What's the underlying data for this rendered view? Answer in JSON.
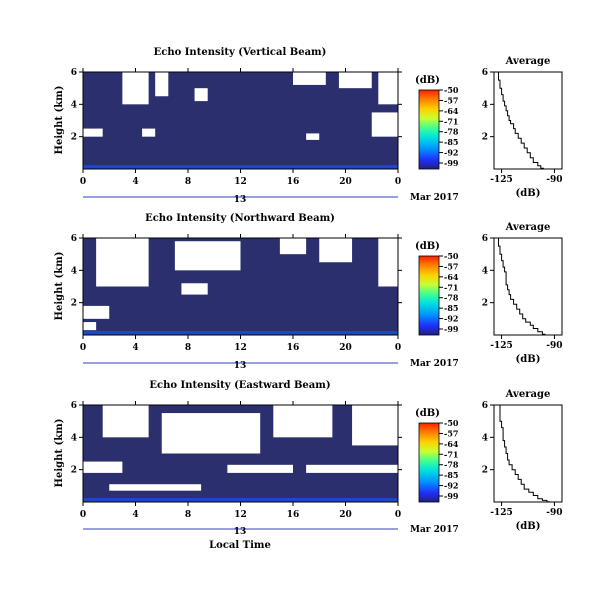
{
  "date_label": "Mar 2017",
  "day_label": "13",
  "xlabel": "Local Time",
  "colorbar": {
    "unit": "(dB)",
    "ticks": [
      "-50",
      "-57",
      "-64",
      "-71",
      "-78",
      "-85",
      "-92",
      "-99"
    ],
    "colors": [
      "#ff2000",
      "#ff8000",
      "#ffd000",
      "#c8ff30",
      "#40ff90",
      "#00e0e0",
      "#0090ff",
      "#2030ff",
      "#202080"
    ]
  },
  "colors": {
    "background_field": "#2b2f6e",
    "surface_band": "#1e46c8",
    "axis": "#000000"
  },
  "chart_data": [
    {
      "type": "heatmap",
      "title": "Echo Intensity (Vertical Beam)",
      "ylabel": "Height (km)",
      "x_ticks": [
        "0",
        "4",
        "8",
        "12",
        "16",
        "20",
        "0"
      ],
      "xlim": [
        0,
        24
      ],
      "y_ticks": [
        "6",
        "4",
        "2"
      ],
      "ylim": [
        0,
        6
      ],
      "white_patches": [
        {
          "x0": 3.0,
          "x1": 5.0,
          "y0": 4.0,
          "y1": 6.0
        },
        {
          "x0": 5.5,
          "x1": 6.5,
          "y0": 4.5,
          "y1": 6.0
        },
        {
          "x0": 8.5,
          "x1": 9.5,
          "y0": 4.2,
          "y1": 5.0
        },
        {
          "x0": 16.0,
          "x1": 18.5,
          "y0": 5.2,
          "y1": 6.0
        },
        {
          "x0": 19.5,
          "x1": 22.0,
          "y0": 5.0,
          "y1": 6.0
        },
        {
          "x0": 22.5,
          "x1": 24.0,
          "y0": 4.0,
          "y1": 6.0
        },
        {
          "x0": 0.0,
          "x1": 1.5,
          "y0": 2.0,
          "y1": 2.5
        },
        {
          "x0": 4.5,
          "x1": 5.5,
          "y0": 2.0,
          "y1": 2.5
        },
        {
          "x0": 17.0,
          "x1": 18.0,
          "y0": 1.8,
          "y1": 2.2
        },
        {
          "x0": 22.0,
          "x1": 24.0,
          "y0": 2.0,
          "y1": 3.5
        }
      ],
      "average_profile": {
        "title": "Average",
        "xlabel": "(dB)",
        "x_ticks": [
          "-125",
          "-90"
        ],
        "xlim": [
          -130,
          -85
        ],
        "y_ticks": [
          "6",
          "4",
          "2"
        ],
        "ylim": [
          0,
          6
        ],
        "x": [
          -127,
          -126,
          -125,
          -124,
          -123,
          -122,
          -121,
          -120,
          -119,
          -117,
          -116,
          -114,
          -112,
          -110,
          -108,
          -106,
          -104,
          -101,
          -99,
          -97
        ],
        "y": [
          6.0,
          5.5,
          5.0,
          4.6,
          4.2,
          3.9,
          3.6,
          3.3,
          3.0,
          2.8,
          2.5,
          2.2,
          1.9,
          1.6,
          1.3,
          1.0,
          0.7,
          0.4,
          0.2,
          0.05
        ]
      }
    },
    {
      "type": "heatmap",
      "title": "Echo Intensity (Northward Beam)",
      "ylabel": "Height (km)",
      "x_ticks": [
        "0",
        "4",
        "8",
        "12",
        "16",
        "20",
        "0"
      ],
      "xlim": [
        0,
        24
      ],
      "y_ticks": [
        "6",
        "4",
        "2"
      ],
      "ylim": [
        0,
        6
      ],
      "white_patches": [
        {
          "x0": 1.0,
          "x1": 5.0,
          "y0": 3.0,
          "y1": 6.0
        },
        {
          "x0": 7.0,
          "x1": 12.0,
          "y0": 4.0,
          "y1": 5.8
        },
        {
          "x0": 15.0,
          "x1": 17.0,
          "y0": 5.0,
          "y1": 6.0
        },
        {
          "x0": 18.0,
          "x1": 20.5,
          "y0": 4.5,
          "y1": 6.0
        },
        {
          "x0": 22.5,
          "x1": 24.0,
          "y0": 3.0,
          "y1": 6.0
        },
        {
          "x0": 0.0,
          "x1": 2.0,
          "y0": 1.0,
          "y1": 1.8
        },
        {
          "x0": 7.5,
          "x1": 9.5,
          "y0": 2.5,
          "y1": 3.2
        },
        {
          "x0": 0.0,
          "x1": 1.0,
          "y0": 0.3,
          "y1": 0.8
        }
      ],
      "average_profile": {
        "title": "Average",
        "xlabel": "(dB)",
        "x_ticks": [
          "-125",
          "-90"
        ],
        "xlim": [
          -130,
          -85
        ],
        "y_ticks": [
          "6",
          "4",
          "2"
        ],
        "ylim": [
          0,
          6
        ],
        "x": [
          -127,
          -126,
          -125,
          -124,
          -123,
          -122,
          -122,
          -121,
          -120,
          -119,
          -117,
          -115,
          -113,
          -111,
          -109,
          -106,
          -104,
          -101,
          -98,
          -96
        ],
        "y": [
          6.0,
          5.5,
          5.0,
          4.6,
          4.2,
          3.9,
          3.5,
          3.1,
          2.8,
          2.5,
          2.2,
          1.9,
          1.6,
          1.3,
          1.0,
          0.8,
          0.6,
          0.4,
          0.2,
          0.05
        ]
      }
    },
    {
      "type": "heatmap",
      "title": "Echo Intensity (Eastward Beam)",
      "ylabel": "Height (km)",
      "x_ticks": [
        "0",
        "4",
        "8",
        "12",
        "16",
        "20",
        "0"
      ],
      "xlim": [
        0,
        24
      ],
      "y_ticks": [
        "6",
        "4",
        "2"
      ],
      "ylim": [
        0,
        6
      ],
      "white_patches": [
        {
          "x0": 1.5,
          "x1": 5.0,
          "y0": 4.0,
          "y1": 6.0
        },
        {
          "x0": 6.0,
          "x1": 13.5,
          "y0": 3.0,
          "y1": 5.5
        },
        {
          "x0": 14.5,
          "x1": 19.0,
          "y0": 4.0,
          "y1": 6.0
        },
        {
          "x0": 20.5,
          "x1": 24.0,
          "y0": 3.5,
          "y1": 6.0
        },
        {
          "x0": 0.0,
          "x1": 3.0,
          "y0": 1.8,
          "y1": 2.5
        },
        {
          "x0": 11.0,
          "x1": 16.0,
          "y0": 1.8,
          "y1": 2.3
        },
        {
          "x0": 17.0,
          "x1": 24.0,
          "y0": 1.8,
          "y1": 2.3
        },
        {
          "x0": 2.0,
          "x1": 9.0,
          "y0": 0.7,
          "y1": 1.1
        }
      ],
      "average_profile": {
        "title": "Average",
        "xlabel": "(dB)",
        "x_ticks": [
          "-125",
          "-90"
        ],
        "xlim": [
          -130,
          -85
        ],
        "y_ticks": [
          "6",
          "4",
          "2"
        ],
        "ylim": [
          0,
          6
        ],
        "x": [
          -126,
          -126,
          -125,
          -124,
          -124,
          -123,
          -122,
          -121,
          -120,
          -118,
          -116,
          -114,
          -112,
          -110,
          -107,
          -104,
          -101,
          -98,
          -95,
          -93
        ],
        "y": [
          6.0,
          5.5,
          5.0,
          4.6,
          4.2,
          3.8,
          3.4,
          3.0,
          2.6,
          2.3,
          2.0,
          1.7,
          1.4,
          1.1,
          0.8,
          0.6,
          0.4,
          0.2,
          0.1,
          0.02
        ]
      }
    }
  ]
}
